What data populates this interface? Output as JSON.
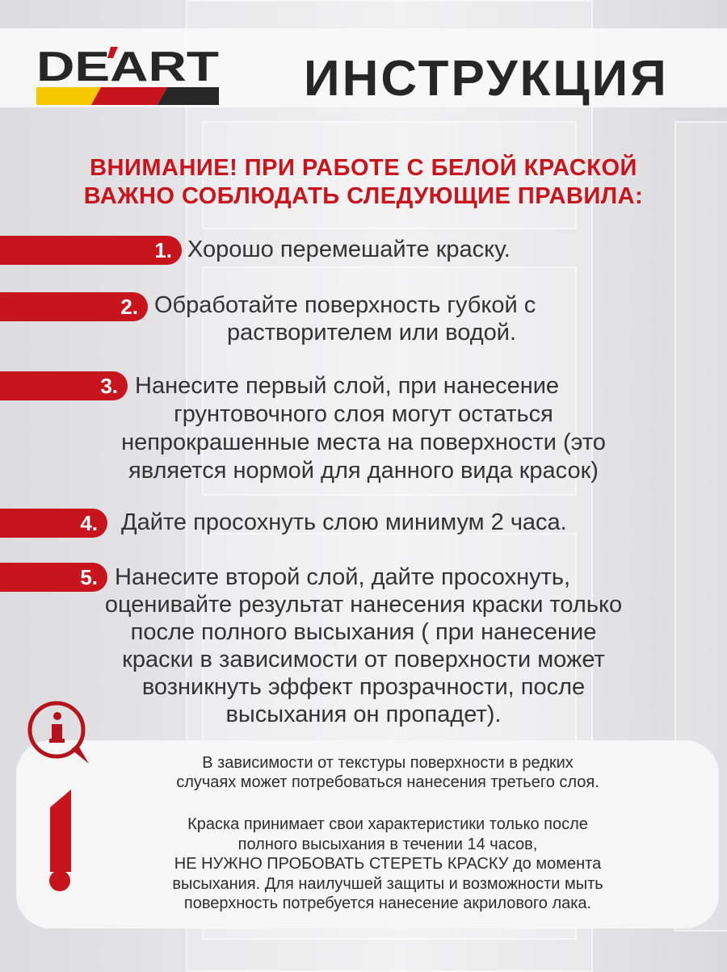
{
  "brand": {
    "logo_text": "DE'ART",
    "colors": {
      "yellow": "#f5c800",
      "red": "#c8141c",
      "dark": "#262626"
    }
  },
  "header": {
    "title": "ИНСТРУКЦИЯ"
  },
  "warning": {
    "lines": [
      "ВНИМАНИЕ! ПРИ РАБОТЕ С БЕЛОЙ КРАСКОЙ",
      "ВАЖНО СОБЛЮДАТЬ СЛЕДУЮЩИЕ ПРАВИЛА:"
    ]
  },
  "steps": [
    {
      "number": "1.",
      "lines": [
        "Хорошо перемешайте краску."
      ]
    },
    {
      "number": "2.",
      "lines": [
        "Обработайте поверхность губкой с",
        "растворителем или водой."
      ]
    },
    {
      "number": "3.",
      "lines": [
        "Нанесите первый слой, при нанесение",
        "грунтовочного слоя могут остаться",
        "непрокрашенные места на поверхности (это",
        "является нормой для данного вида красок)"
      ]
    },
    {
      "number": "4.",
      "lines": [
        "Дайте просохнуть слою минимум 2 часа."
      ]
    },
    {
      "number": "5.",
      "lines": [
        "Нанесите второй слой, дайте просохнуть,",
        "оценивайте результат нанесения краски только",
        "после полного высыхания ( при нанесение",
        "краски в зависимости от поверхности может",
        "возникнуть эффект прозрачности, после",
        "высыхания он пропадет)."
      ]
    }
  ],
  "note": {
    "icons": [
      "info-bubble-icon",
      "exclamation-icon"
    ],
    "lines": [
      "В зависимости от текстуры поверхности в редких",
      "случаях может потребоваться нанесения третьего слоя.",
      "Краска принимает свои характеристики только после",
      "полного высыхания в течении 14 часов,",
      "НЕ НУЖНО  ПРОБОВАТЬ СТЕРЕТЬ КРАСКУ до момента",
      "высыхания. Для наилучшей защиты и возможности мыть",
      "поверхность потребуется нанесение акрилового лака."
    ]
  }
}
